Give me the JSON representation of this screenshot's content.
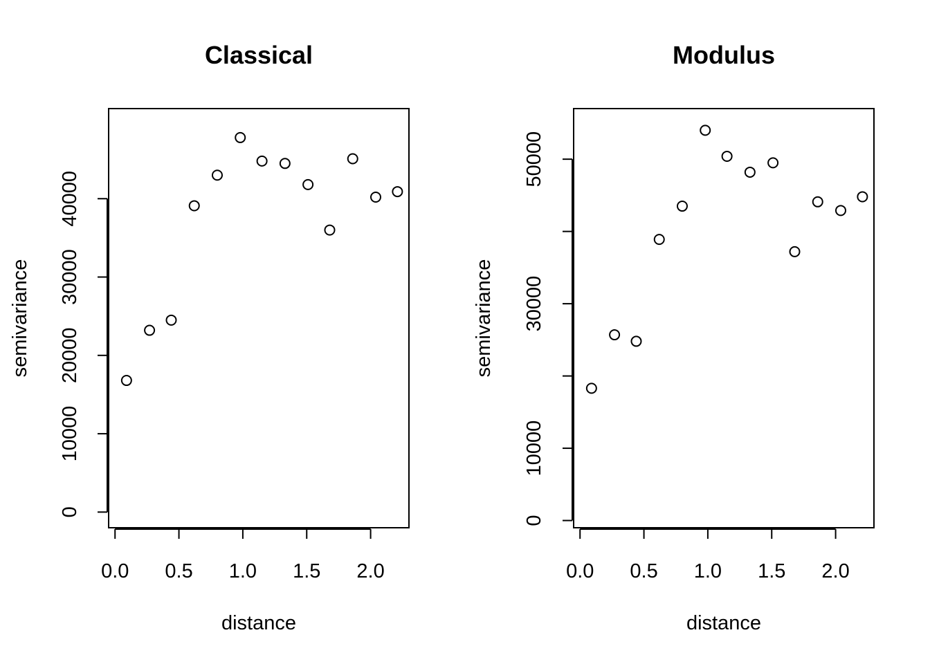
{
  "chart_data": [
    {
      "type": "scatter",
      "title": "Classical",
      "xlabel": "distance",
      "ylabel": "semivariance",
      "xlim": [
        -0.05,
        2.3
      ],
      "ylim": [
        -2000,
        51500
      ],
      "xticks": [
        0.0,
        0.5,
        1.0,
        1.5,
        2.0
      ],
      "xtick_labels": [
        "0.0",
        "0.5",
        "1.0",
        "1.5",
        "2.0"
      ],
      "yticks": [
        0,
        10000,
        20000,
        30000,
        40000
      ],
      "ytick_labels": [
        "0",
        "10000",
        "20000",
        "30000",
        "40000"
      ],
      "grid": false,
      "marker": "open-circle",
      "x": [
        0.09,
        0.27,
        0.44,
        0.62,
        0.8,
        0.98,
        1.15,
        1.33,
        1.51,
        1.68,
        1.86,
        2.04,
        2.21
      ],
      "y": [
        16800,
        23200,
        24500,
        39100,
        43000,
        47800,
        44800,
        44500,
        41800,
        36000,
        45100,
        40200,
        40900
      ]
    },
    {
      "type": "scatter",
      "title": "Modulus",
      "xlabel": "distance",
      "ylabel": "semivariance",
      "xlim": [
        -0.05,
        2.3
      ],
      "ylim": [
        -1000,
        57000
      ],
      "xticks": [
        0.0,
        0.5,
        1.0,
        1.5,
        2.0
      ],
      "xtick_labels": [
        "0.0",
        "0.5",
        "1.0",
        "1.5",
        "2.0"
      ],
      "yticks": [
        0,
        10000,
        20000,
        30000,
        40000,
        50000
      ],
      "ytick_labels": [
        "0",
        "10000",
        "",
        "30000",
        "",
        "50000"
      ],
      "grid": false,
      "marker": "open-circle",
      "x": [
        0.09,
        0.27,
        0.44,
        0.62,
        0.8,
        0.98,
        1.15,
        1.33,
        1.51,
        1.68,
        1.86,
        2.04,
        2.21
      ],
      "y": [
        18300,
        25700,
        24800,
        38900,
        43500,
        54000,
        50400,
        48200,
        49500,
        37200,
        44100,
        42900,
        44800
      ]
    }
  ]
}
